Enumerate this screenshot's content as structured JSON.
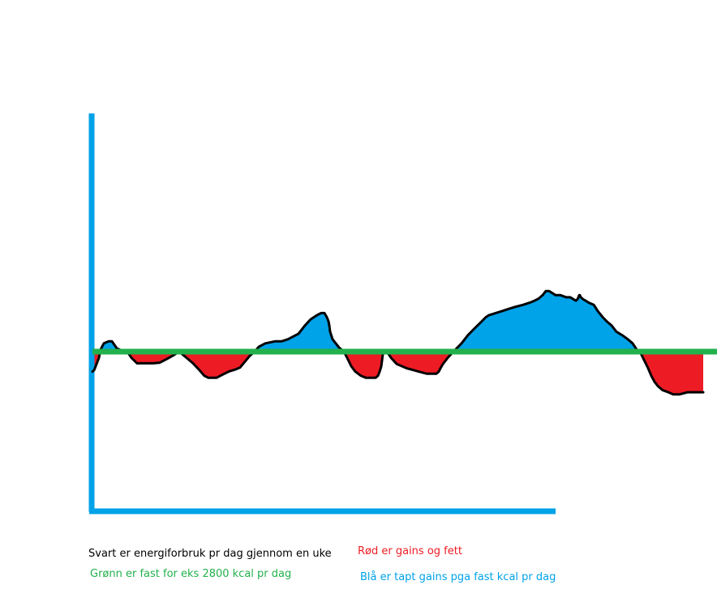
{
  "chart_data": {
    "type": "area",
    "title": "",
    "xlabel": "",
    "ylabel": "",
    "baseline_value": 2800,
    "x": [
      0,
      0.0027,
      0.0053,
      0.0106,
      0.0133,
      0.0186,
      0.0266,
      0.0319,
      0.0358,
      0.0398,
      0.0491,
      0.0571,
      0.0637,
      0.073,
      0.0876,
      0.0995,
      0.1102,
      0.1208,
      0.1314,
      0.142,
      0.154,
      0.1646,
      0.1752,
      0.1832,
      0.1898,
      0.2031,
      0.2138,
      0.2231,
      0.2337,
      0.2417,
      0.2483,
      0.2576,
      0.2656,
      0.2722,
      0.2829,
      0.2988,
      0.3094,
      0.32,
      0.3373,
      0.3479,
      0.3572,
      0.3679,
      0.3745,
      0.3798,
      0.3838,
      0.3865,
      0.3878,
      0.3891,
      0.3931,
      0.4037,
      0.4117,
      0.417,
      0.4237,
      0.4303,
      0.4396,
      0.4476,
      0.4556,
      0.4636,
      0.4675,
      0.4702,
      0.4729,
      0.4742,
      0.4755,
      0.4822,
      0.4888,
      0.4981,
      0.5141,
      0.534,
      0.5472,
      0.5565,
      0.5631,
      0.5671,
      0.5698,
      0.5738,
      0.5817,
      0.591,
      0.6043,
      0.6149,
      0.6269,
      0.6375,
      0.6441,
      0.6494,
      0.6601,
      0.6707,
      0.6813,
      0.6919,
      0.7052,
      0.7158,
      0.7238,
      0.7304,
      0.7371,
      0.7424,
      0.7477,
      0.753,
      0.7583,
      0.7663,
      0.7757,
      0.7823,
      0.7876,
      0.7916,
      0.7942,
      0.7956,
      0.7969,
      0.7982,
      0.7996,
      0.8035,
      0.8075,
      0.8128,
      0.8208,
      0.8274,
      0.8354,
      0.842,
      0.85,
      0.8579,
      0.8672,
      0.8765,
      0.8845,
      0.8911,
      0.8964,
      0.9031,
      0.9097,
      0.915,
      0.9204,
      0.9257,
      0.9336,
      0.9429,
      0.9509,
      0.9615,
      0.9748,
      0.9841,
      0.9934,
      1.0
    ],
    "y": [
      -29,
      -27,
      -21,
      -9,
      3,
      12,
      15,
      15,
      10,
      5,
      1,
      0,
      -9,
      -17,
      -17,
      -17,
      -16,
      -11,
      -6,
      0,
      -9,
      -17,
      -27,
      -35,
      -38,
      -38,
      -33,
      -29,
      -26,
      -23,
      -16,
      -6,
      0,
      7,
      12,
      15,
      15,
      18,
      26,
      38,
      47,
      53,
      56,
      56,
      50,
      44,
      38,
      29,
      18,
      6,
      0,
      -9,
      -21,
      -29,
      -35,
      -38,
      -38,
      -38,
      -35,
      -29,
      -21,
      -12,
      -3,
      0,
      -9,
      -18,
      -24,
      -29,
      -32,
      -32,
      -32,
      -29,
      -24,
      -18,
      -9,
      0,
      12,
      24,
      35,
      44,
      50,
      53,
      56,
      59,
      62,
      65,
      68,
      71,
      74,
      77,
      82,
      88,
      88,
      85,
      82,
      82,
      79,
      79,
      76,
      74,
      76,
      79,
      82,
      82,
      79,
      76,
      74,
      71,
      68,
      59,
      50,
      44,
      38,
      29,
      24,
      18,
      12,
      3,
      0,
      -12,
      -24,
      -35,
      -44,
      -50,
      -56,
      -59,
      -62,
      -62,
      -59,
      -59,
      -59,
      -59
    ],
    "ylim": [
      -200,
      300
    ],
    "fill_above_color": "#00a2e8",
    "fill_below_color": "#ed1c24",
    "curve_color": "#000000",
    "baseline_color": "#22b14c",
    "axis_color": "#00a2e8"
  },
  "legend": {
    "black_text": "Svart er energiforbruk pr dag gjennom en uke",
    "green_text": "Grønn er fast for eks 2800 kcal pr dag",
    "red_text": "Rød er gains og fett",
    "blue_text": "Blå er tapt gains pga fast kcal pr dag",
    "green_color": "#22b14c",
    "red_color": "#ed1c24",
    "blue_color": "#00a2e8"
  }
}
